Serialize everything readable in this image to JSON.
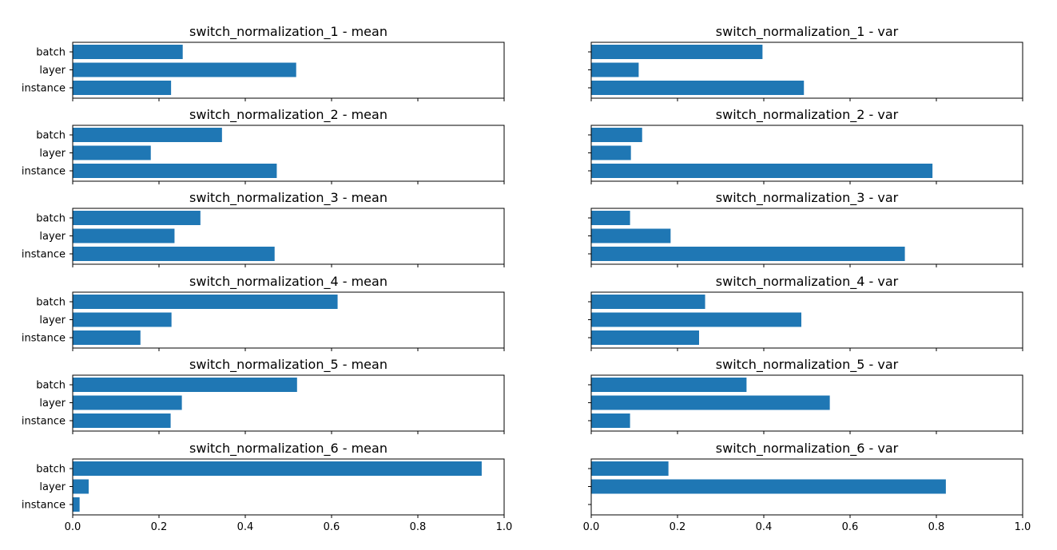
{
  "chart_data": [
    {
      "type": "bar",
      "orientation": "horizontal",
      "title": "switch_normalization_1 - mean",
      "categories": [
        "batch",
        "layer",
        "instance"
      ],
      "values": [
        0.255,
        0.518,
        0.228
      ],
      "xlim": [
        0,
        1.0
      ],
      "xticks": [
        "0.0",
        "0.2",
        "0.4",
        "0.6",
        "0.8",
        "1.0"
      ],
      "show_xtick_labels": false,
      "show_ytick_labels": true,
      "color": "#1f77b4"
    },
    {
      "type": "bar",
      "orientation": "horizontal",
      "title": "switch_normalization_1 - var",
      "categories": [
        "batch",
        "layer",
        "instance"
      ],
      "values": [
        0.397,
        0.11,
        0.493
      ],
      "xlim": [
        0,
        1.0
      ],
      "xticks": [
        "0.0",
        "0.2",
        "0.4",
        "0.6",
        "0.8",
        "1.0"
      ],
      "show_xtick_labels": false,
      "show_ytick_labels": false,
      "color": "#1f77b4"
    },
    {
      "type": "bar",
      "orientation": "horizontal",
      "title": "switch_normalization_2 - mean",
      "categories": [
        "batch",
        "layer",
        "instance"
      ],
      "values": [
        0.346,
        0.181,
        0.473
      ],
      "xlim": [
        0,
        1.0
      ],
      "xticks": [
        "0.0",
        "0.2",
        "0.4",
        "0.6",
        "0.8",
        "1.0"
      ],
      "show_xtick_labels": false,
      "show_ytick_labels": true,
      "color": "#1f77b4"
    },
    {
      "type": "bar",
      "orientation": "horizontal",
      "title": "switch_normalization_2 - var",
      "categories": [
        "batch",
        "layer",
        "instance"
      ],
      "values": [
        0.118,
        0.092,
        0.791
      ],
      "xlim": [
        0,
        1.0
      ],
      "xticks": [
        "0.0",
        "0.2",
        "0.4",
        "0.6",
        "0.8",
        "1.0"
      ],
      "show_xtick_labels": false,
      "show_ytick_labels": false,
      "color": "#1f77b4"
    },
    {
      "type": "bar",
      "orientation": "horizontal",
      "title": "switch_normalization_3 - mean",
      "categories": [
        "batch",
        "layer",
        "instance"
      ],
      "values": [
        0.296,
        0.236,
        0.468
      ],
      "xlim": [
        0,
        1.0
      ],
      "xticks": [
        "0.0",
        "0.2",
        "0.4",
        "0.6",
        "0.8",
        "1.0"
      ],
      "show_xtick_labels": false,
      "show_ytick_labels": true,
      "color": "#1f77b4"
    },
    {
      "type": "bar",
      "orientation": "horizontal",
      "title": "switch_normalization_3 - var",
      "categories": [
        "batch",
        "layer",
        "instance"
      ],
      "values": [
        0.09,
        0.184,
        0.727
      ],
      "xlim": [
        0,
        1.0
      ],
      "xticks": [
        "0.0",
        "0.2",
        "0.4",
        "0.6",
        "0.8",
        "1.0"
      ],
      "show_xtick_labels": false,
      "show_ytick_labels": false,
      "color": "#1f77b4"
    },
    {
      "type": "bar",
      "orientation": "horizontal",
      "title": "switch_normalization_4 - mean",
      "categories": [
        "batch",
        "layer",
        "instance"
      ],
      "values": [
        0.614,
        0.229,
        0.157
      ],
      "xlim": [
        0,
        1.0
      ],
      "xticks": [
        "0.0",
        "0.2",
        "0.4",
        "0.6",
        "0.8",
        "1.0"
      ],
      "show_xtick_labels": false,
      "show_ytick_labels": true,
      "color": "#1f77b4"
    },
    {
      "type": "bar",
      "orientation": "horizontal",
      "title": "switch_normalization_4 - var",
      "categories": [
        "batch",
        "layer",
        "instance"
      ],
      "values": [
        0.264,
        0.487,
        0.25
      ],
      "xlim": [
        0,
        1.0
      ],
      "xticks": [
        "0.0",
        "0.2",
        "0.4",
        "0.6",
        "0.8",
        "1.0"
      ],
      "show_xtick_labels": false,
      "show_ytick_labels": false,
      "color": "#1f77b4"
    },
    {
      "type": "bar",
      "orientation": "horizontal",
      "title": "switch_normalization_5 - mean",
      "categories": [
        "batch",
        "layer",
        "instance"
      ],
      "values": [
        0.52,
        0.253,
        0.227
      ],
      "xlim": [
        0,
        1.0
      ],
      "xticks": [
        "0.0",
        "0.2",
        "0.4",
        "0.6",
        "0.8",
        "1.0"
      ],
      "show_xtick_labels": false,
      "show_ytick_labels": true,
      "color": "#1f77b4"
    },
    {
      "type": "bar",
      "orientation": "horizontal",
      "title": "switch_normalization_5 - var",
      "categories": [
        "batch",
        "layer",
        "instance"
      ],
      "values": [
        0.36,
        0.553,
        0.09
      ],
      "xlim": [
        0,
        1.0
      ],
      "xticks": [
        "0.0",
        "0.2",
        "0.4",
        "0.6",
        "0.8",
        "1.0"
      ],
      "show_xtick_labels": false,
      "show_ytick_labels": false,
      "color": "#1f77b4"
    },
    {
      "type": "bar",
      "orientation": "horizontal",
      "title": "switch_normalization_6 - mean",
      "categories": [
        "batch",
        "layer",
        "instance"
      ],
      "values": [
        0.948,
        0.037,
        0.016
      ],
      "xlim": [
        0,
        1.0
      ],
      "xticks": [
        "0.0",
        "0.2",
        "0.4",
        "0.6",
        "0.8",
        "1.0"
      ],
      "show_xtick_labels": true,
      "show_ytick_labels": true,
      "color": "#1f77b4"
    },
    {
      "type": "bar",
      "orientation": "horizontal",
      "title": "switch_normalization_6 - var",
      "categories": [
        "batch",
        "layer",
        "instance"
      ],
      "values": [
        0.179,
        0.822,
        0.0
      ],
      "xlim": [
        0,
        1.0
      ],
      "xticks": [
        "0.0",
        "0.2",
        "0.4",
        "0.6",
        "0.8",
        "1.0"
      ],
      "show_xtick_labels": true,
      "show_ytick_labels": false,
      "color": "#1f77b4"
    }
  ]
}
